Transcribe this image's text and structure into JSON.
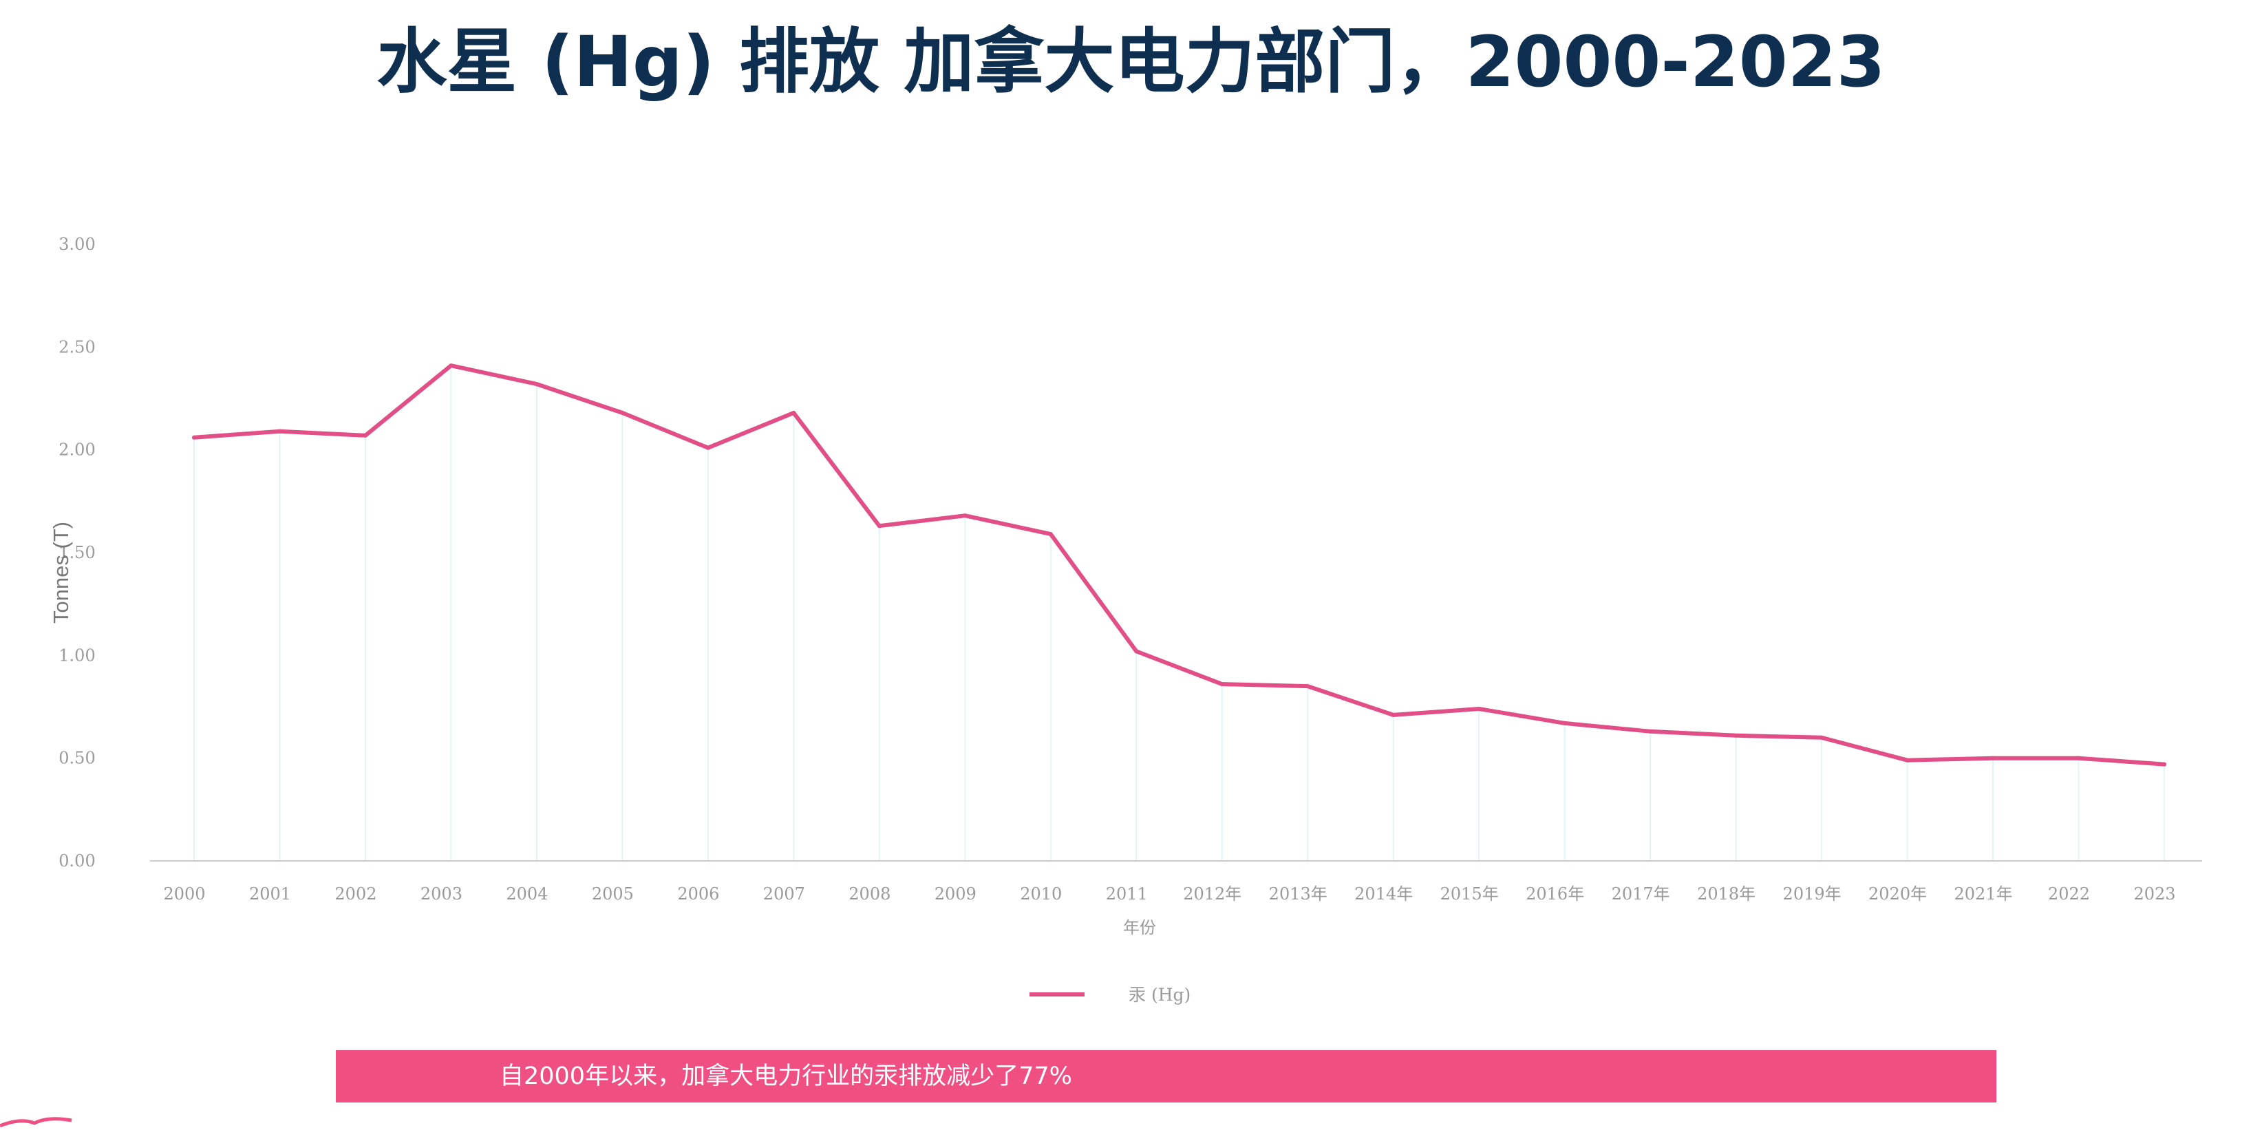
{
  "title": "水星 (Hg) 排放 加拿大电力部门，2000-2023",
  "banner": {
    "text": "自2000年以来，加拿大电力行业的汞排放减少了77%"
  },
  "colors": {
    "title": "#0e2f4f",
    "series": "#e24f86",
    "banner": "#ef4f82",
    "gridline": "#e0f4f4",
    "axis": "#cccccc",
    "tick_text": "#9a9a9a"
  },
  "chart_data": {
    "type": "line",
    "title": "水星 (Hg) 排放 加拿大电力部门，2000-2023",
    "xlabel": "年份",
    "ylabel": "Tonnes (T)",
    "ylim": [
      0,
      3
    ],
    "yticks": [
      "0.00",
      "0.50",
      "1.00",
      "1.50",
      "2.00",
      "2.50",
      "3.00"
    ],
    "categories": [
      "2000",
      "2001",
      "2002",
      "2003",
      "2004",
      "2005",
      "2006",
      "2007",
      "2008",
      "2009",
      "2010",
      "2011",
      "2012年",
      "2013年",
      "2014年",
      "2015年",
      "2016年",
      "2017年",
      "2018年",
      "2019年",
      "2020年",
      "2021年",
      "2022",
      "2023"
    ],
    "series": [
      {
        "name": "汞 (Hg)",
        "values": [
          2.06,
          2.09,
          2.07,
          2.41,
          2.32,
          2.18,
          2.01,
          2.18,
          1.63,
          1.68,
          1.59,
          1.02,
          0.86,
          0.85,
          0.71,
          0.74,
          0.67,
          0.63,
          0.61,
          0.6,
          0.49,
          0.5,
          0.5,
          0.47
        ]
      }
    ],
    "grid": "vertical lines at data points",
    "legend": "bottom-center"
  }
}
